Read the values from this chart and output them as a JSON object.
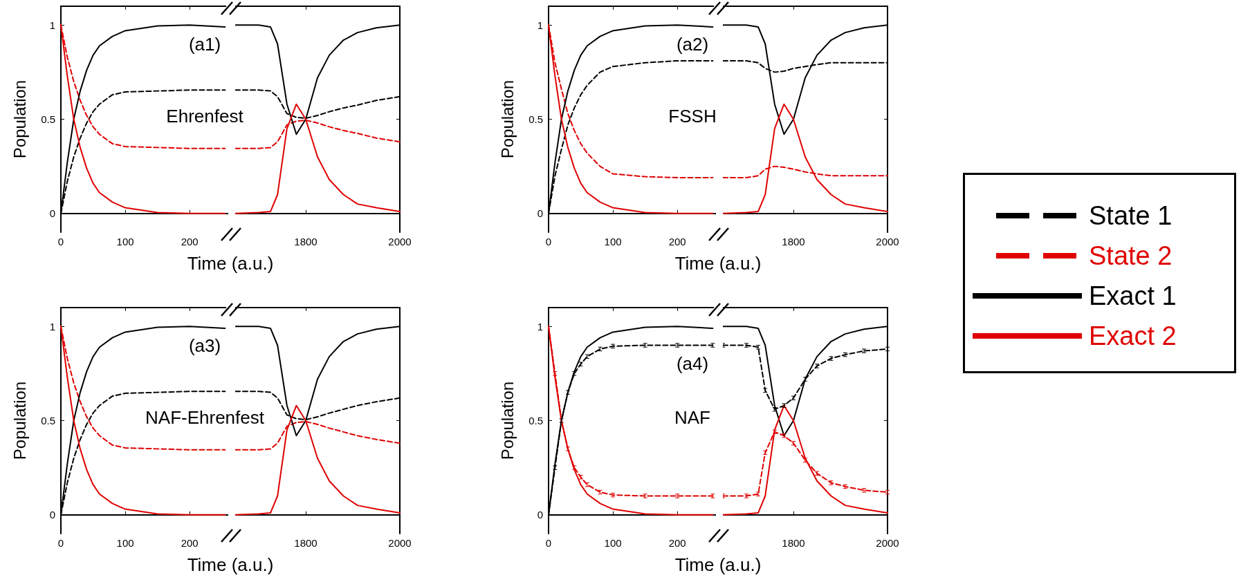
{
  "chart_data": [
    {
      "type": "line",
      "xlabel": "Time (a.u.)",
      "ylabel": "Population",
      "annotations": [
        "(a1)",
        "Ehrenfest"
      ],
      "legend": "right",
      "xlim": [
        0,
        260
      ],
      "xticks": [
        0,
        100,
        200
      ],
      "ylim": [
        -0.1,
        1.1
      ],
      "yticks": [
        0,
        0.5,
        1
      ],
      "x": [
        0,
        10,
        20,
        30,
        40,
        50,
        60,
        80,
        100,
        150,
        200,
        255
      ],
      "series": [
        {
          "name": "State 1",
          "color": "#000000",
          "line_style": "dashed",
          "values": [
            0,
            0.17,
            0.3,
            0.4,
            0.48,
            0.54,
            0.58,
            0.63,
            0.645,
            0.65,
            0.655,
            0.655
          ]
        },
        {
          "name": "State 2",
          "color": "#e00000",
          "line_style": "dashed",
          "values": [
            1,
            0.83,
            0.7,
            0.6,
            0.52,
            0.46,
            0.42,
            0.37,
            0.355,
            0.35,
            0.345,
            0.345
          ]
        },
        {
          "name": "Exact 1",
          "color": "#000000",
          "line_style": "solid",
          "values": [
            0,
            0.27,
            0.5,
            0.65,
            0.76,
            0.84,
            0.89,
            0.94,
            0.97,
            0.995,
            1,
            0.99
          ]
        },
        {
          "name": "Exact 2",
          "color": "#e00000",
          "line_style": "solid",
          "values": [
            1,
            0.73,
            0.5,
            0.35,
            0.24,
            0.16,
            0.11,
            0.06,
            0.03,
            0.005,
            0,
            0
          ]
        }
      ]
    },
    {
      "type": "line",
      "tick_labels": "x",
      "xlim": [
        1650,
        2000
      ],
      "xticks": [
        1800,
        2000
      ],
      "ylim": [
        -0.1,
        1.1
      ],
      "yticks": [
        0,
        0.5,
        1
      ],
      "x": [
        1650,
        1700,
        1725,
        1740,
        1760,
        1780,
        1800,
        1825,
        1850,
        1880,
        1910,
        1950,
        2000
      ],
      "series": [
        {
          "color": "#000000",
          "line_style": "dashed",
          "values": [
            0.655,
            0.655,
            0.65,
            0.62,
            0.53,
            0.51,
            0.505,
            0.52,
            0.54,
            0.56,
            0.575,
            0.6,
            0.62
          ]
        },
        {
          "color": "#e00000",
          "line_style": "dashed",
          "values": [
            0.345,
            0.345,
            0.35,
            0.38,
            0.47,
            0.49,
            0.495,
            0.48,
            0.46,
            0.44,
            0.425,
            0.4,
            0.38
          ]
        },
        {
          "color": "#000000",
          "line_style": "solid",
          "values": [
            1,
            1,
            0.99,
            0.9,
            0.58,
            0.42,
            0.5,
            0.72,
            0.84,
            0.92,
            0.96,
            0.985,
            1
          ]
        },
        {
          "color": "#e00000",
          "line_style": "solid",
          "values": [
            0,
            0.005,
            0.01,
            0.1,
            0.45,
            0.58,
            0.5,
            0.3,
            0.18,
            0.1,
            0.05,
            0.03,
            0.01
          ]
        }
      ]
    },
    {
      "type": "line",
      "xlabel": "Time (a.u.)",
      "ylabel": "Population",
      "annotations": [
        "(a2)",
        "FSSH"
      ],
      "xlim": [
        0,
        260
      ],
      "xticks": [
        0,
        100,
        200
      ],
      "ylim": [
        -0.1,
        1.1
      ],
      "yticks": [
        0,
        0.5,
        1
      ],
      "x": [
        0,
        10,
        20,
        30,
        40,
        50,
        60,
        80,
        100,
        150,
        200,
        255
      ],
      "series": [
        {
          "color": "#000000",
          "line_style": "dashed",
          "values": [
            0,
            0.2,
            0.34,
            0.47,
            0.56,
            0.63,
            0.68,
            0.75,
            0.78,
            0.8,
            0.81,
            0.81
          ]
        },
        {
          "color": "#e00000",
          "line_style": "dashed",
          "values": [
            1,
            0.8,
            0.66,
            0.53,
            0.44,
            0.37,
            0.32,
            0.25,
            0.21,
            0.195,
            0.19,
            0.19
          ]
        },
        {
          "color": "#000000",
          "line_style": "solid",
          "values": [
            0,
            0.27,
            0.5,
            0.65,
            0.76,
            0.84,
            0.89,
            0.94,
            0.97,
            0.995,
            1,
            0.99
          ]
        },
        {
          "color": "#e00000",
          "line_style": "solid",
          "values": [
            1,
            0.73,
            0.5,
            0.35,
            0.24,
            0.16,
            0.11,
            0.06,
            0.03,
            0.005,
            0,
            0
          ]
        }
      ]
    },
    {
      "type": "line",
      "tick_labels": "x",
      "xlim": [
        1650,
        2000
      ],
      "xticks": [
        1800,
        2000
      ],
      "ylim": [
        -0.1,
        1.1
      ],
      "yticks": [
        0,
        0.5,
        1
      ],
      "x": [
        1650,
        1700,
        1725,
        1740,
        1760,
        1780,
        1800,
        1825,
        1850,
        1880,
        1910,
        1950,
        2000
      ],
      "series": [
        {
          "color": "#000000",
          "line_style": "dashed",
          "values": [
            0.81,
            0.81,
            0.8,
            0.77,
            0.75,
            0.755,
            0.77,
            0.78,
            0.79,
            0.8,
            0.8,
            0.8,
            0.8
          ]
        },
        {
          "color": "#e00000",
          "line_style": "dashed",
          "values": [
            0.19,
            0.19,
            0.2,
            0.235,
            0.25,
            0.245,
            0.235,
            0.22,
            0.21,
            0.2,
            0.2,
            0.2,
            0.2
          ]
        },
        {
          "color": "#000000",
          "line_style": "solid",
          "values": [
            1,
            1,
            0.99,
            0.9,
            0.58,
            0.42,
            0.5,
            0.72,
            0.84,
            0.92,
            0.96,
            0.985,
            1
          ]
        },
        {
          "color": "#e00000",
          "line_style": "solid",
          "values": [
            0,
            0.005,
            0.01,
            0.1,
            0.45,
            0.58,
            0.5,
            0.3,
            0.18,
            0.1,
            0.05,
            0.03,
            0.01
          ]
        }
      ]
    },
    {
      "type": "line",
      "xlabel": "Time (a.u.)",
      "ylabel": "Population",
      "annotations": [
        "(a3)",
        "NAF-Ehrenfest"
      ],
      "xlim": [
        0,
        260
      ],
      "xticks": [
        0,
        100,
        200
      ],
      "ylim": [
        -0.1,
        1.1
      ],
      "yticks": [
        0,
        0.5,
        1
      ],
      "x": [
        0,
        10,
        20,
        30,
        40,
        50,
        60,
        80,
        100,
        150,
        200,
        255
      ],
      "series": [
        {
          "color": "#000000",
          "line_style": "dashed",
          "values": [
            0,
            0.17,
            0.3,
            0.4,
            0.48,
            0.54,
            0.58,
            0.63,
            0.645,
            0.65,
            0.655,
            0.655
          ]
        },
        {
          "color": "#e00000",
          "line_style": "dashed",
          "values": [
            1,
            0.83,
            0.7,
            0.6,
            0.52,
            0.46,
            0.42,
            0.37,
            0.355,
            0.35,
            0.345,
            0.345
          ]
        },
        {
          "color": "#000000",
          "line_style": "solid",
          "values": [
            0,
            0.27,
            0.5,
            0.65,
            0.76,
            0.84,
            0.89,
            0.94,
            0.97,
            0.995,
            1,
            0.99
          ]
        },
        {
          "color": "#e00000",
          "line_style": "solid",
          "values": [
            1,
            0.73,
            0.5,
            0.35,
            0.24,
            0.16,
            0.11,
            0.06,
            0.03,
            0.005,
            0,
            0
          ]
        }
      ]
    },
    {
      "type": "line",
      "tick_labels": "x",
      "xlim": [
        1650,
        2000
      ],
      "xticks": [
        1800,
        2000
      ],
      "ylim": [
        -0.1,
        1.1
      ],
      "yticks": [
        0,
        0.5,
        1
      ],
      "x": [
        1650,
        1700,
        1725,
        1740,
        1760,
        1780,
        1800,
        1825,
        1850,
        1880,
        1910,
        1950,
        2000
      ],
      "series": [
        {
          "color": "#000000",
          "line_style": "dashed",
          "values": [
            0.655,
            0.655,
            0.65,
            0.62,
            0.53,
            0.51,
            0.505,
            0.52,
            0.54,
            0.56,
            0.58,
            0.6,
            0.62
          ]
        },
        {
          "color": "#e00000",
          "line_style": "dashed",
          "values": [
            0.345,
            0.345,
            0.35,
            0.38,
            0.47,
            0.49,
            0.495,
            0.48,
            0.46,
            0.44,
            0.42,
            0.4,
            0.38
          ]
        },
        {
          "color": "#000000",
          "line_style": "solid",
          "values": [
            1,
            1,
            0.99,
            0.9,
            0.58,
            0.42,
            0.5,
            0.72,
            0.84,
            0.92,
            0.96,
            0.985,
            1
          ]
        },
        {
          "color": "#e00000",
          "line_style": "solid",
          "values": [
            0,
            0.005,
            0.01,
            0.1,
            0.45,
            0.58,
            0.5,
            0.3,
            0.18,
            0.1,
            0.05,
            0.03,
            0.01
          ]
        }
      ]
    },
    {
      "type": "line",
      "xlabel": "Time (a.u.)",
      "ylabel": "Population",
      "annotations": [
        "(a4)",
        "NAF"
      ],
      "xlim": [
        0,
        260
      ],
      "xticks": [
        0,
        100,
        200
      ],
      "ylim": [
        -0.1,
        1.1
      ],
      "yticks": [
        0,
        0.5,
        1
      ],
      "x": [
        0,
        10,
        20,
        30,
        40,
        50,
        60,
        80,
        100,
        150,
        200,
        255
      ],
      "series": [
        {
          "color": "#000000",
          "line_style": "dashed",
          "values": [
            0,
            0.25,
            0.5,
            0.65,
            0.75,
            0.8,
            0.84,
            0.88,
            0.895,
            0.9,
            0.9,
            0.9
          ],
          "errors": [
            null,
            0.01,
            0.01,
            0.01,
            0.01,
            0.01,
            0.01,
            0.01,
            0.01,
            0.01,
            0.01,
            0.01
          ]
        },
        {
          "color": "#e00000",
          "line_style": "dashed",
          "values": [
            1,
            0.75,
            0.5,
            0.35,
            0.25,
            0.2,
            0.16,
            0.12,
            0.105,
            0.1,
            0.1,
            0.1
          ],
          "errors": [
            null,
            0.01,
            null,
            0.01,
            0.01,
            0.01,
            0.01,
            0.01,
            0.01,
            0.01,
            0.01,
            0.01
          ]
        },
        {
          "color": "#000000",
          "line_style": "solid",
          "values": [
            0,
            0.27,
            0.5,
            0.65,
            0.76,
            0.84,
            0.89,
            0.94,
            0.97,
            0.995,
            1,
            0.99
          ]
        },
        {
          "color": "#e00000",
          "line_style": "solid",
          "values": [
            1,
            0.73,
            0.5,
            0.35,
            0.24,
            0.16,
            0.11,
            0.06,
            0.03,
            0.005,
            0,
            0
          ]
        }
      ]
    },
    {
      "type": "line",
      "tick_labels": "x",
      "xlim": [
        1650,
        2000
      ],
      "xticks": [
        1800,
        2000
      ],
      "ylim": [
        -0.1,
        1.1
      ],
      "yticks": [
        0,
        0.5,
        1
      ],
      "x": [
        1650,
        1700,
        1725,
        1740,
        1760,
        1780,
        1800,
        1825,
        1850,
        1880,
        1910,
        1950,
        2000
      ],
      "series": [
        {
          "color": "#000000",
          "line_style": "dashed",
          "values": [
            0.9,
            0.9,
            0.89,
            0.66,
            0.56,
            0.58,
            0.62,
            0.72,
            0.79,
            0.83,
            0.85,
            0.87,
            0.88
          ],
          "errors": [
            0.01,
            0.01,
            0.01,
            0.01,
            0.01,
            0.01,
            0.01,
            0.01,
            0.01,
            0.01,
            0.01,
            0.01,
            0.01
          ]
        },
        {
          "color": "#e00000",
          "line_style": "dashed",
          "values": [
            0.1,
            0.1,
            0.11,
            0.33,
            0.44,
            0.42,
            0.38,
            0.29,
            0.22,
            0.17,
            0.15,
            0.13,
            0.12
          ],
          "errors": [
            0.01,
            0.01,
            0.01,
            0.01,
            0.01,
            0.01,
            0.01,
            0.01,
            0.01,
            0.01,
            0.01,
            0.01,
            0.01
          ]
        },
        {
          "color": "#000000",
          "line_style": "solid",
          "values": [
            1,
            1,
            0.99,
            0.9,
            0.58,
            0.42,
            0.5,
            0.72,
            0.84,
            0.92,
            0.96,
            0.985,
            1
          ]
        },
        {
          "color": "#e00000",
          "line_style": "solid",
          "values": [
            0,
            0.005,
            0.01,
            0.1,
            0.45,
            0.58,
            0.5,
            0.3,
            0.18,
            0.1,
            0.05,
            0.03,
            0.01
          ]
        }
      ]
    }
  ]
}
